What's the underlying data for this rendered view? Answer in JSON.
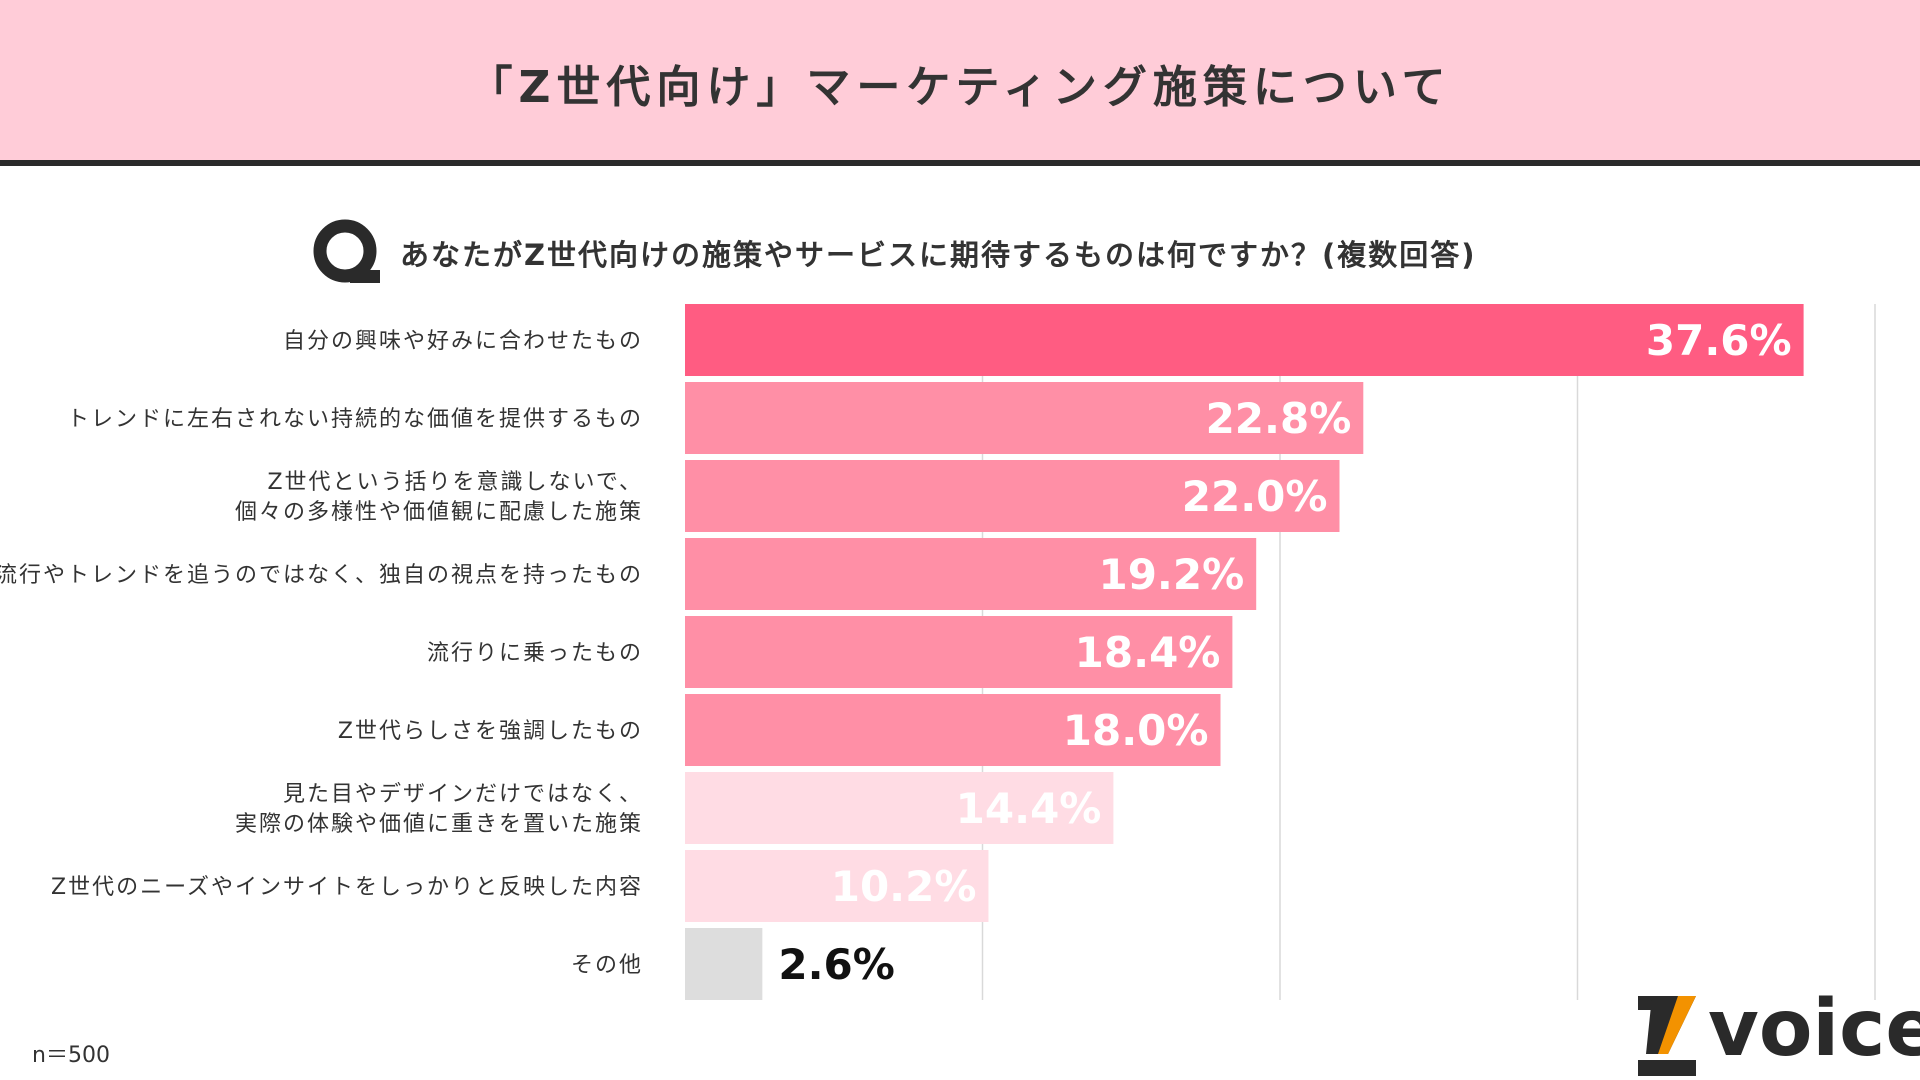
{
  "header": {
    "title": "「Z世代向け」マーケティング施策について"
  },
  "question": {
    "icon": "q-icon",
    "text": "あなたがZ世代向けの施策やサービスに期待するものは何ですか？(複数回答)"
  },
  "chart_data": {
    "type": "bar",
    "orientation": "horizontal",
    "title": "",
    "xlim": [
      0,
      40
    ],
    "grid": true,
    "value_suffix": "%",
    "categories": [
      [
        "自分の興味や好みに合わせたもの"
      ],
      [
        "トレンドに左右されない持続的な価値を提供するもの"
      ],
      [
        "Z世代という括りを意識しないで、",
        "個々の多様性や価値観に配慮した施策"
      ],
      [
        "流行やトレンドを追うのではなく、独自の視点を持ったもの"
      ],
      [
        "流行りに乗ったもの"
      ],
      [
        "Z世代らしさを強調したもの"
      ],
      [
        "見た目やデザインだけではなく、",
        "実際の体験や価値に重きを置いた施策"
      ],
      [
        "Z世代のニーズやインサイトをしっかりと反映した内容"
      ],
      [
        "その他"
      ]
    ],
    "values": [
      37.6,
      22.8,
      22.0,
      19.2,
      18.4,
      18.0,
      14.4,
      10.2,
      2.6
    ],
    "value_labels": [
      "37.6%",
      "22.8%",
      "22.0%",
      "19.2%",
      "18.4%",
      "18.0%",
      "14.4%",
      "10.2%",
      "2.6%"
    ],
    "bar_colors": [
      "#ff5c82",
      "#ff8fa6",
      "#ff8fa6",
      "#ff8fa6",
      "#ff8fa6",
      "#ff8fa6",
      "#ffdce4",
      "#ffdce4",
      "#dddddd"
    ],
    "label_colors": [
      "#ffffff",
      "#ffffff",
      "#ffffff",
      "#ffffff",
      "#ffffff",
      "#ffffff",
      "#ffffff",
      "#ffffff",
      "#111111"
    ]
  },
  "footer": {
    "n_label": "n＝500"
  },
  "brand": {
    "logo_icon": "z-logo-icon",
    "text": "voice"
  },
  "colors": {
    "header_bg": "#ffccd8",
    "header_border": "#2a2a2a",
    "accent": "#ff5c82",
    "grid": "#d9d9d9"
  }
}
